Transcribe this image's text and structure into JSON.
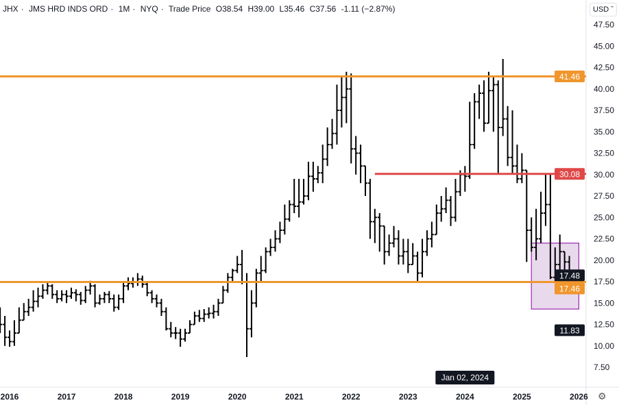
{
  "legend": {
    "symbol": "JHX",
    "name": "JMS HRD INDS ORD",
    "interval": "1M",
    "exchange": "NYQ",
    "price_type": "Trade Price",
    "open": "O38.54",
    "high": "H39.00",
    "low": "L35.46",
    "close": "C37.56",
    "change": "-1.11 (−2.87%)"
  },
  "currency_button": "USD ˇ",
  "settings_icon": "gear-icon",
  "crosshair_date": "Jan 02, 2024",
  "chart_data": {
    "type": "ohlc",
    "start_month": "2015-11",
    "interval": "1M",
    "close": [
      12.5,
      11,
      10.5,
      11.5,
      13,
      14,
      14.5,
      15.2,
      15.8,
      16.5,
      17,
      16,
      15.5,
      16,
      15.8,
      16.2,
      16,
      15.3,
      16.5,
      17,
      15,
      15.5,
      16,
      15.5,
      14.5,
      15.5,
      17,
      17.3,
      17.5,
      17.8,
      17.2,
      16.2,
      15.5,
      15,
      14,
      12,
      11.5,
      11.5,
      10.8,
      11.5,
      12.5,
      13.5,
      13.2,
      13.7,
      13.8,
      14,
      15,
      16.5,
      18,
      18.8,
      19.5,
      17.5,
      12,
      15,
      18.5,
      18.8,
      21,
      21.5,
      22.5,
      23.5,
      24.8,
      26.5,
      26.3,
      26.8,
      27.5,
      29.8,
      29.5,
      30.2,
      31.8,
      33.5,
      34.8,
      37.5,
      39,
      40,
      33,
      32.5,
      31,
      29,
      24.5,
      25,
      24,
      21,
      22,
      22.5,
      20.5,
      21,
      19.5,
      20.5,
      18.5,
      21,
      22.5,
      23,
      25.5,
      26,
      27,
      25,
      28,
      30,
      29.8,
      33.5,
      38.5,
      39.5,
      36,
      39.8,
      40.5,
      35.5,
      36.5,
      32,
      31,
      29.5,
      30.5,
      23.5,
      21.5,
      22.5,
      25.5,
      26.5,
      18,
      19.5,
      21,
      19.8,
      17.48
    ],
    "high": [
      14.5,
      13.5,
      11.8,
      13,
      14.5,
      15,
      15.5,
      16.5,
      16.8,
      17.2,
      17.5,
      17.2,
      16.5,
      16.5,
      16.5,
      16.8,
      16.6,
      16.3,
      17,
      17.6,
      17.2,
      16,
      16.3,
      16.4,
      16,
      16,
      17.5,
      18,
      18,
      18.5,
      18.2,
      17.5,
      16.5,
      16,
      15.5,
      14.5,
      12.8,
      12.2,
      12,
      12,
      13,
      14,
      14.2,
      14.3,
      14.5,
      14.8,
      15.5,
      17,
      18.5,
      19,
      20.5,
      21.2,
      18.5,
      16.5,
      19,
      20.5,
      21.5,
      22.5,
      23.5,
      24.5,
      26.5,
      27,
      29.5,
      29.5,
      29.5,
      31.5,
      31.5,
      31,
      33.5,
      35.5,
      36.5,
      40.5,
      41.5,
      42,
      41.8,
      34.5,
      33.5,
      31,
      29.5,
      26,
      25.5,
      24,
      23,
      24,
      23.5,
      22.5,
      22.5,
      22,
      21,
      22.5,
      23.5,
      24.5,
      26.5,
      27.5,
      28.5,
      27.5,
      29.5,
      30.5,
      31,
      38.5,
      39.5,
      40.5,
      41,
      42,
      41.5,
      41,
      43.5,
      38,
      37.5,
      33.5,
      32.5,
      30.5,
      25,
      26,
      28,
      30,
      30,
      21.5,
      23,
      21,
      20.5
    ],
    "low": [
      11.5,
      10,
      9.9,
      10,
      12,
      13,
      13.5,
      14,
      14.5,
      15.5,
      16,
      15.5,
      15,
      15.2,
      15,
      15.5,
      15.2,
      14.8,
      15,
      16,
      14.5,
      14.8,
      15,
      15,
      14,
      14.2,
      15,
      16.5,
      16.8,
      17,
      16.8,
      15.8,
      15,
      14.5,
      13.5,
      11.8,
      11,
      10.8,
      9.9,
      10.5,
      11.5,
      12.5,
      12.8,
      12.8,
      13.2,
      13.2,
      13.5,
      15,
      16.2,
      17.5,
      18.5,
      17.2,
      8.7,
      11,
      14.5,
      17.5,
      18.5,
      20.5,
      21,
      22,
      23,
      24.5,
      25.5,
      25,
      26.5,
      27,
      28,
      29,
      29,
      31,
      33,
      33.5,
      35.5,
      36,
      31.3,
      30,
      29,
      27.5,
      22.5,
      22,
      21,
      19.5,
      20.5,
      21.5,
      19.5,
      19.5,
      18.5,
      19.5,
      17.5,
      18,
      20.5,
      21.5,
      23.5,
      24.5,
      25.5,
      24,
      24.5,
      27.5,
      28,
      29.5,
      33,
      36.5,
      35,
      37.5,
      35,
      30,
      34.5,
      31,
      30,
      29,
      29,
      19.8,
      21,
      20,
      22,
      24,
      17.8,
      17.5,
      18.5,
      18.5,
      16.8
    ],
    "y_axis": {
      "min": 7.5,
      "max": 47.5,
      "ticks": [
        "47.50",
        "45.00",
        "42.50",
        "40.00",
        "37.50",
        "35.00",
        "32.50",
        "30.00",
        "27.50",
        "25.00",
        "22.50",
        "20.00",
        "17.50",
        "15.00",
        "12.50",
        "10.00",
        "7.50"
      ]
    },
    "x_axis": {
      "ticks": [
        "2016",
        "2017",
        "2018",
        "2019",
        "2020",
        "2021",
        "2022",
        "2023",
        "2024",
        "2025",
        "2026"
      ]
    },
    "hlines": [
      {
        "price": 41.46,
        "label": "41.46",
        "color": "#f0962d",
        "from": "start"
      },
      {
        "price": 30.08,
        "label": "30.08",
        "color": "#e04848",
        "from": "2022-06"
      },
      {
        "price": 17.46,
        "label": "17.46",
        "color": "#f0962d",
        "from": "start"
      }
    ],
    "rectangle": {
      "from": "2025-03",
      "to": "2026-01",
      "top": 22.0,
      "bottom": 14.3,
      "stroke": "#9c27b0",
      "fill": "#e3cfe9"
    },
    "last_price": {
      "label": "17.48",
      "color": "#131722"
    },
    "crosshair_price": {
      "label": "11.83",
      "color": "#131722"
    },
    "bar_color": "#000000"
  }
}
